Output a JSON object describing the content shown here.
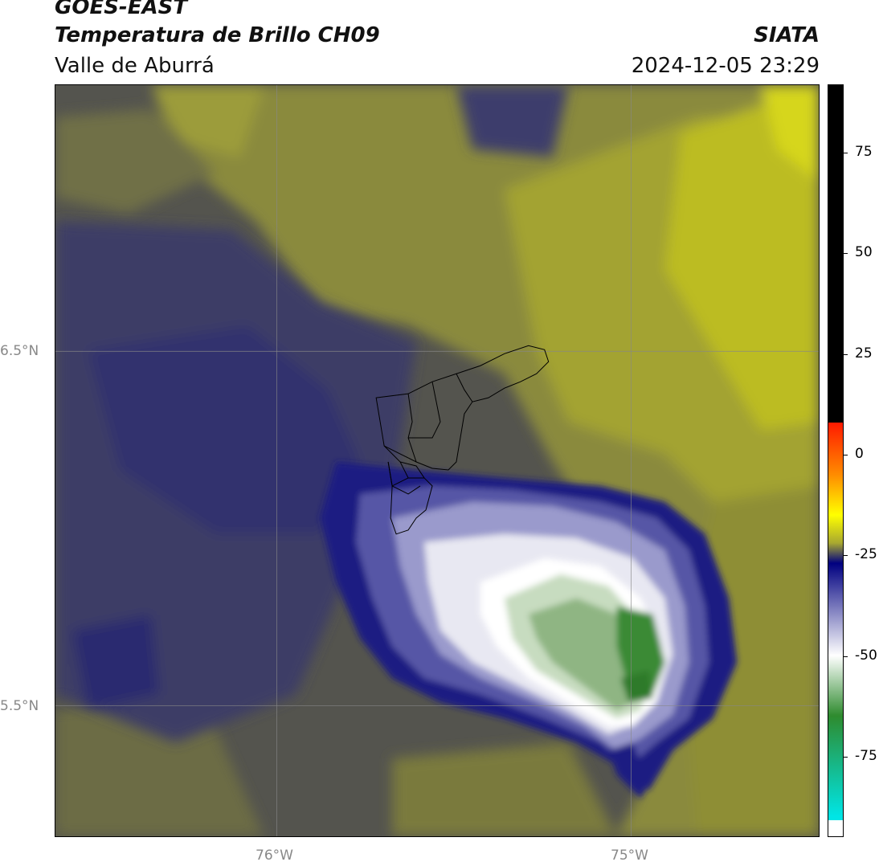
{
  "header": {
    "title_line1": "GOES-EAST",
    "title_line2": "Temperatura de Brillo CH09",
    "subtitle": "Valle de Aburrá",
    "org": "SIATA",
    "datetime": "2024-12-05 23:29"
  },
  "map": {
    "lat_labels": [
      "6.5°N",
      "5.5°N"
    ],
    "lon_labels": [
      "76°W",
      "75°W"
    ]
  },
  "colorbar": {
    "ticks": [
      "75",
      "50",
      "25",
      "0",
      "-25",
      "-50",
      "-75"
    ],
    "tick_values": [
      75,
      50,
      25,
      0,
      -25,
      -50,
      -75
    ],
    "range": [
      -95,
      92
    ],
    "colors": {
      "black": "#000000",
      "red": "#ff1a00",
      "orange": "#ff8c00",
      "yellow": "#ffff00",
      "olive": "#a8a830",
      "navy": "#000080",
      "white": "#ffffff",
      "green": "#2e8b2e",
      "cyan": "#00e5e5"
    }
  }
}
